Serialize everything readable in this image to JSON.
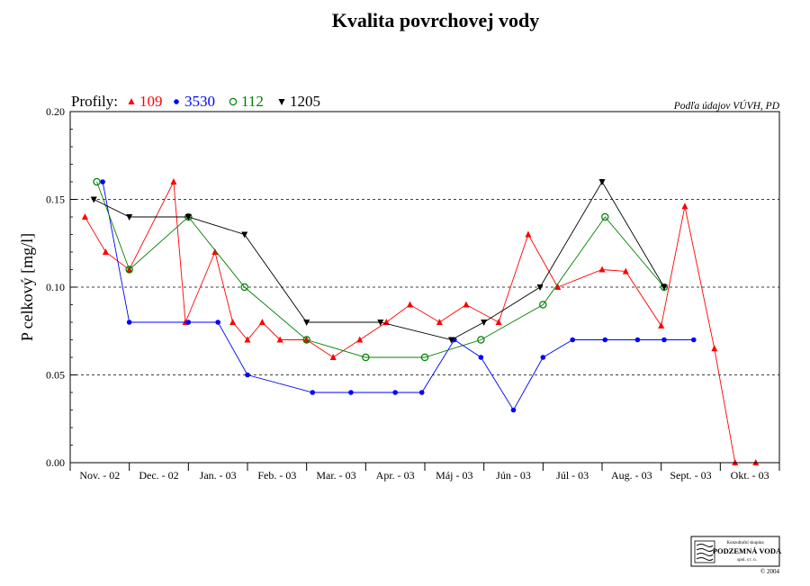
{
  "chart_data": {
    "type": "line",
    "title": "Kvalita povrchovej vody",
    "ylabel": "P celkový [mg/l]",
    "xlabel": "",
    "source": "Podľa údajov VÚVH, PD",
    "legend_title": "Profily:",
    "legend_placement": "top-left",
    "ylim": [
      0,
      0.2
    ],
    "xlim": [
      0,
      12
    ],
    "yticks": [
      0.0,
      0.05,
      0.1,
      0.15,
      0.2
    ],
    "ytick_labels": [
      "0.00",
      "0.05",
      "0.10",
      "0.15",
      "0.20"
    ],
    "grid_y": [
      0.05,
      0.1,
      0.15
    ],
    "categories": [
      "Nov. - 02",
      "Dec. - 02",
      "Jan. - 03",
      "Feb. - 03",
      "Mar. - 03",
      "Apr. - 03",
      "Máj - 03",
      "Jún - 03",
      "Júl - 03",
      "Aug. - 03",
      "Sept. - 03",
      "Okt. - 03"
    ],
    "series": [
      {
        "name": "109",
        "color": "#ff0000",
        "marker": "triangle-up",
        "x": [
          0.25,
          0.6,
          1.0,
          1.75,
          1.95,
          2.45,
          2.75,
          3.0,
          3.25,
          3.55,
          4.0,
          4.45,
          4.9,
          5.35,
          5.75,
          6.25,
          6.7,
          7.25,
          7.75,
          8.25,
          9.0,
          9.4,
          10.0,
          10.4,
          10.9,
          11.25,
          11.6
        ],
        "y": [
          0.14,
          0.12,
          0.11,
          0.16,
          0.08,
          0.12,
          0.08,
          0.07,
          0.08,
          0.07,
          0.07,
          0.06,
          0.07,
          0.08,
          0.09,
          0.08,
          0.09,
          0.08,
          0.13,
          0.1,
          0.11,
          0.109,
          0.078,
          0.146,
          0.065,
          0.0,
          0.0
        ]
      },
      {
        "name": "3530",
        "color": "#0000ff",
        "marker": "circle-filled",
        "x": [
          0.55,
          1.0,
          2.0,
          2.5,
          3.0,
          4.1,
          4.75,
          5.5,
          5.95,
          6.5,
          6.95,
          7.5,
          8.0,
          8.5,
          9.05,
          9.6,
          10.05,
          10.55
        ],
        "y": [
          0.16,
          0.08,
          0.08,
          0.08,
          0.05,
          0.04,
          0.04,
          0.04,
          0.04,
          0.07,
          0.06,
          0.03,
          0.06,
          0.07,
          0.07,
          0.07,
          0.07,
          0.07
        ]
      },
      {
        "name": "112",
        "color": "#008000",
        "marker": "circle-open",
        "x": [
          0.45,
          1.0,
          2.0,
          2.95,
          4.0,
          5.0,
          6.0,
          6.95,
          8.0,
          9.05,
          10.05
        ],
        "y": [
          0.16,
          0.11,
          0.14,
          0.1,
          0.07,
          0.06,
          0.06,
          0.07,
          0.09,
          0.14,
          0.1
        ]
      },
      {
        "name": "1205",
        "color": "#000000",
        "marker": "triangle-down",
        "x": [
          0.4,
          1.0,
          2.0,
          2.95,
          4.0,
          5.25,
          6.45,
          7.0,
          7.95,
          9.0,
          10.05
        ],
        "y": [
          0.15,
          0.14,
          0.14,
          0.13,
          0.08,
          0.08,
          0.07,
          0.08,
          0.1,
          0.16,
          0.1
        ]
      }
    ]
  },
  "logo": {
    "line1": "Konzultační skupina",
    "line2": "PODZEMNÁ VODA",
    "line3": "spol. s r. o.",
    "copyright": "© 2004"
  }
}
